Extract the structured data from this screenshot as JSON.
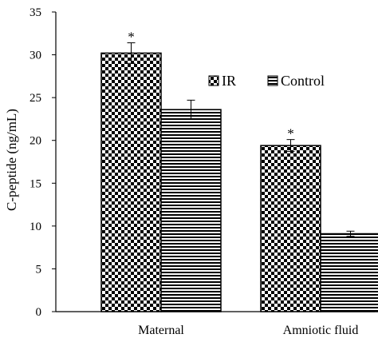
{
  "chart_data": {
    "type": "bar",
    "ylabel": "C-peptide (ng/mL)",
    "xlabel": "",
    "ylim": [
      0,
      35
    ],
    "yticks": [
      0,
      5,
      10,
      15,
      20,
      25,
      30,
      35
    ],
    "categories": [
      "Maternal",
      "Amniotic fluid"
    ],
    "series": [
      {
        "name": "IR",
        "values": [
          30.2,
          19.4
        ],
        "errors": [
          1.2,
          0.7
        ],
        "pattern": "checker",
        "annotations": [
          "*",
          "*"
        ]
      },
      {
        "name": "Control",
        "values": [
          23.6,
          9.1
        ],
        "errors": [
          1.1,
          0.3
        ],
        "pattern": "hstripe",
        "annotations": [
          "",
          ""
        ]
      }
    ],
    "legend_position": "upper-right inside plot",
    "grid": false,
    "colors": {
      "bar_fill": "#000000",
      "bar_background": "#ffffff",
      "axis": "#000000"
    }
  }
}
